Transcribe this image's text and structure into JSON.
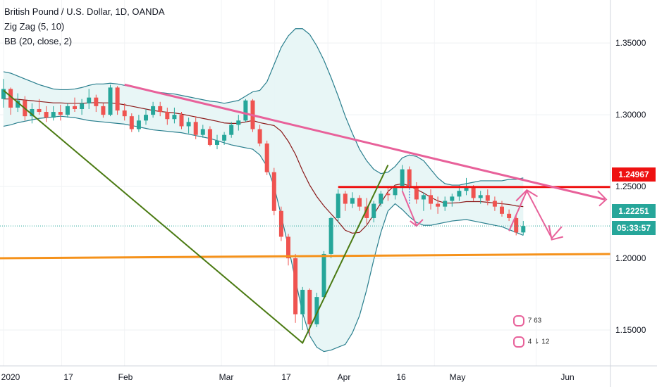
{
  "header": {
    "title": "British Pound / U.S. Dollar, 1D, OANDA",
    "indicator1": "Zig Zag (5, 10)",
    "indicator2": "BB (20, close, 2)"
  },
  "price_labels": {
    "resistance": "1.24967",
    "current": "1.22251",
    "countdown": "05:33:57"
  },
  "colors": {
    "up": "#26a69a",
    "down": "#ef5350",
    "band": "#2a7f8e",
    "band_fill": "#e6f5f5",
    "basis": "#8b1a1a",
    "zigzag": "#4a7a12",
    "resistance": "#ee1111",
    "support": "#f5921b",
    "trendline": "#e8619a",
    "current": "#26a69a"
  },
  "badges": {
    "row1": "7 63",
    "row2": "4 ⇂ 12"
  },
  "chart_data": {
    "type": "candlestick",
    "y_axis_ticks": [
      "1.35000",
      "1.30000",
      "1.25000",
      "1.20000",
      "1.15000"
    ],
    "x_axis_ticks": [
      "2020",
      "17",
      "Feb",
      "Mar",
      "17",
      "Apr",
      "16",
      "May",
      "Jun"
    ],
    "ylim": [
      1.125,
      1.38
    ],
    "series": [
      {
        "name": "candles",
        "ohlc": [
          [
            1.311,
            1.325,
            1.305,
            1.318
          ],
          [
            1.318,
            1.319,
            1.3,
            1.305
          ],
          [
            1.305,
            1.315,
            1.302,
            1.31
          ],
          [
            1.31,
            1.313,
            1.296,
            1.299
          ],
          [
            1.299,
            1.308,
            1.294,
            1.304
          ],
          [
            1.304,
            1.311,
            1.3,
            1.302
          ],
          [
            1.302,
            1.306,
            1.295,
            1.298
          ],
          [
            1.298,
            1.306,
            1.296,
            1.302
          ],
          [
            1.302,
            1.307,
            1.296,
            1.3
          ],
          [
            1.3,
            1.308,
            1.298,
            1.306
          ],
          [
            1.306,
            1.312,
            1.302,
            1.304
          ],
          [
            1.304,
            1.311,
            1.3,
            1.308
          ],
          [
            1.308,
            1.318,
            1.304,
            1.312
          ],
          [
            1.312,
            1.314,
            1.302,
            1.306
          ],
          [
            1.306,
            1.308,
            1.298,
            1.3
          ],
          [
            1.3,
            1.321,
            1.299,
            1.319
          ],
          [
            1.319,
            1.32,
            1.3,
            1.303
          ],
          [
            1.303,
            1.308,
            1.296,
            1.299
          ],
          [
            1.299,
            1.301,
            1.288,
            1.29
          ],
          [
            1.29,
            1.3,
            1.288,
            1.296
          ],
          [
            1.296,
            1.304,
            1.293,
            1.3
          ],
          [
            1.3,
            1.309,
            1.298,
            1.306
          ],
          [
            1.306,
            1.309,
            1.299,
            1.302
          ],
          [
            1.302,
            1.305,
            1.293,
            1.297
          ],
          [
            1.297,
            1.305,
            1.294,
            1.3
          ],
          [
            1.3,
            1.302,
            1.29,
            1.292
          ],
          [
            1.292,
            1.298,
            1.287,
            1.295
          ],
          [
            1.295,
            1.299,
            1.283,
            1.286
          ],
          [
            1.286,
            1.293,
            1.284,
            1.29
          ],
          [
            1.29,
            1.292,
            1.278,
            1.279
          ],
          [
            1.279,
            1.286,
            1.276,
            1.282
          ],
          [
            1.282,
            1.288,
            1.279,
            1.286
          ],
          [
            1.286,
            1.295,
            1.284,
            1.293
          ],
          [
            1.293,
            1.3,
            1.289,
            1.296
          ],
          [
            1.296,
            1.311,
            1.295,
            1.31
          ],
          [
            1.31,
            1.311,
            1.288,
            1.29
          ],
          [
            1.29,
            1.293,
            1.278,
            1.28
          ],
          [
            1.28,
            1.282,
            1.258,
            1.26
          ],
          [
            1.26,
            1.263,
            1.23,
            1.233
          ],
          [
            1.233,
            1.236,
            1.212,
            1.215
          ],
          [
            1.215,
            1.217,
            1.195,
            1.2
          ],
          [
            1.2,
            1.203,
            1.155,
            1.161
          ],
          [
            1.161,
            1.18,
            1.15,
            1.178
          ],
          [
            1.178,
            1.179,
            1.146,
            1.154
          ],
          [
            1.154,
            1.176,
            1.152,
            1.173
          ],
          [
            1.173,
            1.205,
            1.172,
            1.203
          ],
          [
            1.203,
            1.229,
            1.2,
            1.228
          ],
          [
            1.228,
            1.248,
            1.225,
            1.245
          ],
          [
            1.245,
            1.247,
            1.233,
            1.238
          ],
          [
            1.238,
            1.246,
            1.235,
            1.242
          ],
          [
            1.242,
            1.244,
            1.233,
            1.236
          ],
          [
            1.236,
            1.242,
            1.224,
            1.228
          ],
          [
            1.228,
            1.24,
            1.225,
            1.238
          ],
          [
            1.238,
            1.247,
            1.236,
            1.245
          ],
          [
            1.245,
            1.25,
            1.24,
            1.244
          ],
          [
            1.244,
            1.251,
            1.241,
            1.249
          ],
          [
            1.249,
            1.265,
            1.247,
            1.262
          ],
          [
            1.262,
            1.264,
            1.248,
            1.25
          ],
          [
            1.25,
            1.253,
            1.238,
            1.241
          ],
          [
            1.241,
            1.246,
            1.233,
            1.244
          ],
          [
            1.244,
            1.248,
            1.234,
            1.238
          ],
          [
            1.238,
            1.243,
            1.231,
            1.236
          ],
          [
            1.236,
            1.243,
            1.233,
            1.24
          ],
          [
            1.24,
            1.245,
            1.236,
            1.243
          ],
          [
            1.243,
            1.251,
            1.24,
            1.247
          ],
          [
            1.247,
            1.256,
            1.244,
            1.25
          ],
          [
            1.25,
            1.251,
            1.24,
            1.242
          ],
          [
            1.242,
            1.247,
            1.238,
            1.244
          ],
          [
            1.244,
            1.248,
            1.237,
            1.24
          ],
          [
            1.24,
            1.243,
            1.233,
            1.236
          ],
          [
            1.236,
            1.24,
            1.229,
            1.231
          ],
          [
            1.231,
            1.234,
            1.226,
            1.228
          ],
          [
            1.228,
            1.23,
            1.216,
            1.218
          ],
          [
            1.218,
            1.226,
            1.216,
            1.2225
          ]
        ]
      },
      {
        "name": "upper band",
        "values": [
          1.33,
          1.329,
          1.327,
          1.325,
          1.323,
          1.321,
          1.3195,
          1.318,
          1.3175,
          1.3175,
          1.318,
          1.319,
          1.3205,
          1.3215,
          1.3215,
          1.322,
          1.3215,
          1.3205,
          1.3195,
          1.3185,
          1.3175,
          1.3165,
          1.3155,
          1.315,
          1.3145,
          1.3135,
          1.3125,
          1.3115,
          1.3105,
          1.3095,
          1.309,
          1.308,
          1.309,
          1.31,
          1.313,
          1.316,
          1.317,
          1.323,
          1.335,
          1.347,
          1.355,
          1.36,
          1.36,
          1.356,
          1.348,
          1.338,
          1.326,
          1.313,
          1.299,
          1.287,
          1.276,
          1.268,
          1.262,
          1.259,
          1.26,
          1.264,
          1.27,
          1.272,
          1.271,
          1.268,
          1.262,
          1.256,
          1.252,
          1.251,
          1.251,
          1.252,
          1.253,
          1.254,
          1.254,
          1.254,
          1.254,
          1.255,
          1.255,
          1.256
        ]
      },
      {
        "name": "lower band",
        "values": [
          1.292,
          1.293,
          1.2945,
          1.2955,
          1.2965,
          1.2975,
          1.298,
          1.2985,
          1.299,
          1.2985,
          1.298,
          1.297,
          1.296,
          1.2955,
          1.295,
          1.2945,
          1.294,
          1.2935,
          1.2925,
          1.2915,
          1.2905,
          1.2895,
          1.289,
          1.2885,
          1.288,
          1.2875,
          1.2865,
          1.2855,
          1.2845,
          1.2835,
          1.282,
          1.2805,
          1.279,
          1.278,
          1.277,
          1.276,
          1.272,
          1.264,
          1.25,
          1.23,
          1.208,
          1.185,
          1.162,
          1.146,
          1.138,
          1.135,
          1.136,
          1.138,
          1.14,
          1.148,
          1.16,
          1.178,
          1.199,
          1.218,
          1.233,
          1.238,
          1.234,
          1.229,
          1.225,
          1.223,
          1.223,
          1.224,
          1.225,
          1.226,
          1.2265,
          1.227,
          1.226,
          1.225,
          1.224,
          1.223,
          1.222,
          1.22,
          1.218,
          1.216
        ]
      },
      {
        "name": "basis",
        "values": [
          1.311,
          1.311,
          1.3108,
          1.3103,
          1.3098,
          1.3093,
          1.3088,
          1.3083,
          1.3083,
          1.308,
          1.308,
          1.308,
          1.3083,
          1.3085,
          1.3083,
          1.3083,
          1.3078,
          1.307,
          1.306,
          1.305,
          1.304,
          1.303,
          1.3023,
          1.3018,
          1.3013,
          1.3005,
          1.2995,
          1.2985,
          1.2975,
          1.2965,
          1.2955,
          1.2943,
          1.294,
          1.294,
          1.295,
          1.296,
          1.2945,
          1.2935,
          1.2925,
          1.2885,
          1.2815,
          1.2725,
          1.261,
          1.251,
          1.243,
          1.2365,
          1.231,
          1.2255,
          1.2195,
          1.2175,
          1.218,
          1.223,
          1.2305,
          1.2385,
          1.2465,
          1.251,
          1.252,
          1.2505,
          1.248,
          1.2455,
          1.2425,
          1.24,
          1.2385,
          1.2385,
          1.2388,
          1.2395,
          1.2395,
          1.2395,
          1.239,
          1.2385,
          1.238,
          1.2375,
          1.2365,
          1.236
        ]
      }
    ],
    "zigzag": [
      {
        "date": "2020-01-01",
        "value": 1.317
      },
      {
        "date": "2020-03-20",
        "value": 1.141
      },
      {
        "date": "2020-04-14",
        "value": 1.265
      }
    ],
    "annotations": {
      "resistance_level": 1.24967,
      "support_line": [
        1.2,
        1.203
      ],
      "descending_trendline": [
        1.321,
        1.241
      ],
      "current_price": 1.22251
    }
  }
}
